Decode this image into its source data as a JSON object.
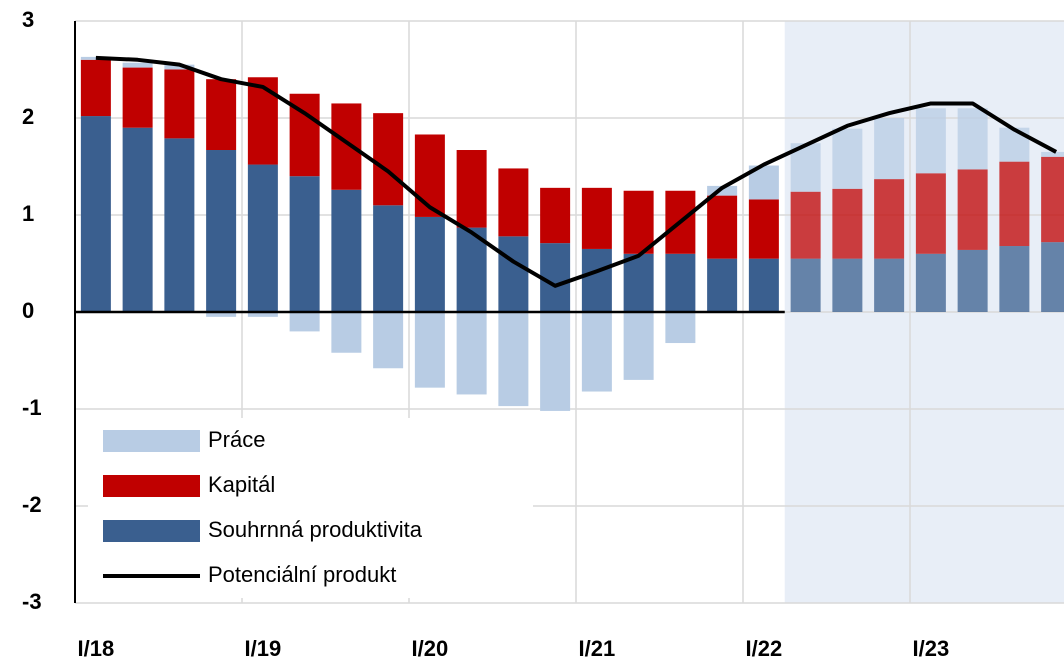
{
  "chart_data": {
    "type": "stacked-bar-line",
    "categories": [
      "I/18",
      null,
      null,
      null,
      "I/19",
      null,
      null,
      null,
      "I/20",
      null,
      null,
      null,
      "I/21",
      null,
      null,
      null,
      "I/22",
      null,
      null,
      null,
      "I/23",
      null,
      null,
      null
    ],
    "series": [
      {
        "name": "Práce",
        "color": "#b8cce4",
        "kind": "bar",
        "values": [
          0.03,
          0.05,
          0.05,
          -0.05,
          -0.05,
          -0.2,
          -0.42,
          -0.58,
          -0.78,
          -0.85,
          -0.97,
          -1.02,
          -0.82,
          -0.7,
          -0.32,
          0.1,
          0.35,
          0.5,
          0.62,
          0.63,
          0.67,
          0.63,
          0.35,
          0.05
        ]
      },
      {
        "name": "Kapitál",
        "color": "#c00000",
        "kind": "bar",
        "values": [
          0.58,
          0.62,
          0.71,
          0.73,
          0.9,
          0.85,
          0.89,
          0.95,
          0.85,
          0.8,
          0.7,
          0.57,
          0.63,
          0.65,
          0.65,
          0.65,
          0.61,
          0.69,
          0.72,
          0.82,
          0.83,
          0.83,
          0.87,
          0.88
        ]
      },
      {
        "name": "Souhrnná produktivita",
        "color": "#3a5f8f",
        "kind": "bar",
        "values": [
          2.02,
          1.9,
          1.79,
          1.67,
          1.52,
          1.4,
          1.26,
          1.1,
          0.98,
          0.87,
          0.78,
          0.71,
          0.65,
          0.6,
          0.6,
          0.55,
          0.55,
          0.55,
          0.55,
          0.55,
          0.6,
          0.64,
          0.68,
          0.72
        ]
      },
      {
        "name": "Potenciální produkt",
        "color": "#000000",
        "kind": "line",
        "values": [
          2.62,
          2.6,
          2.55,
          2.4,
          2.32,
          2.05,
          1.75,
          1.45,
          1.08,
          0.82,
          0.52,
          0.27,
          0.42,
          0.58,
          0.93,
          1.28,
          1.52,
          1.72,
          1.92,
          2.05,
          2.15,
          2.15,
          1.88,
          1.65
        ]
      }
    ],
    "stack_order": [
      2,
      1,
      0
    ],
    "shade_from": 17,
    "shade_color": "#e8eef7",
    "ylim": [
      -3,
      3
    ],
    "yticks": [
      -3,
      -2,
      -1,
      0,
      1,
      2,
      3
    ],
    "grid": true,
    "legend": "lower left"
  }
}
